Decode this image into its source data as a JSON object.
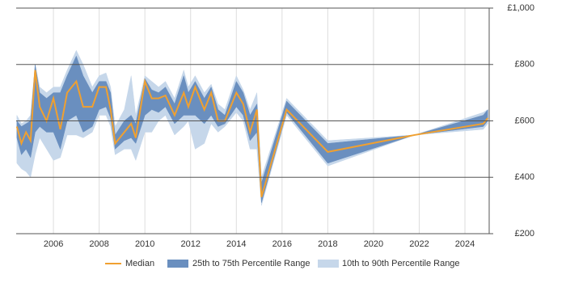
{
  "chart_data": {
    "type": "band-line",
    "x": [
      2004.4,
      2004.6,
      2004.8,
      2005.0,
      2005.2,
      2005.4,
      2005.7,
      2006.0,
      2006.3,
      2006.6,
      2007.0,
      2007.3,
      2007.7,
      2008.0,
      2008.3,
      2008.5,
      2008.7,
      2009.1,
      2009.4,
      2009.6,
      2010.0,
      2010.3,
      2010.6,
      2010.9,
      2011.3,
      2011.7,
      2011.9,
      2012.2,
      2012.6,
      2012.9,
      2013.2,
      2013.5,
      2014.0,
      2014.3,
      2014.6,
      2014.9,
      2015.1,
      2016.2,
      2018.0,
      2021.8,
      2024.8,
      2025.0
    ],
    "series": [
      {
        "name": "Median",
        "color": "#f0a030",
        "values": [
          580,
          520,
          560,
          530,
          780,
          650,
          600,
          680,
          570,
          700,
          740,
          650,
          650,
          720,
          720,
          640,
          520,
          560,
          590,
          540,
          740,
          680,
          680,
          690,
          620,
          700,
          650,
          720,
          640,
          700,
          600,
          600,
          700,
          660,
          560,
          640,
          330,
          640,
          490,
          550,
          590,
          610
        ]
      },
      {
        "name": "25th to 75th Percentile Range",
        "color": "#6a8fbf",
        "low": [
          540,
          480,
          500,
          470,
          560,
          580,
          560,
          560,
          500,
          600,
          620,
          560,
          580,
          640,
          650,
          610,
          500,
          530,
          540,
          520,
          620,
          640,
          630,
          650,
          590,
          620,
          620,
          620,
          590,
          620,
          580,
          590,
          650,
          620,
          530,
          560,
          310,
          630,
          450,
          550,
          580,
          600
        ],
        "high": [
          600,
          580,
          590,
          600,
          800,
          700,
          680,
          700,
          700,
          760,
          830,
          760,
          700,
          740,
          740,
          700,
          550,
          600,
          620,
          590,
          750,
          710,
          700,
          720,
          660,
          760,
          700,
          740,
          680,
          720,
          640,
          620,
          740,
          700,
          620,
          660,
          380,
          670,
          520,
          550,
          620,
          640
        ]
      },
      {
        "name": "10th to 90th Percentile Range",
        "color": "#c6d7ea",
        "low": [
          450,
          430,
          420,
          400,
          480,
          540,
          500,
          460,
          470,
          550,
          550,
          540,
          560,
          620,
          620,
          580,
          480,
          500,
          500,
          460,
          560,
          560,
          600,
          620,
          550,
          580,
          600,
          500,
          520,
          590,
          560,
          580,
          630,
          600,
          500,
          500,
          300,
          620,
          440,
          550,
          570,
          590
        ],
        "high": [
          620,
          590,
          600,
          620,
          800,
          720,
          700,
          720,
          720,
          780,
          850,
          800,
          720,
          760,
          770,
          720,
          580,
          640,
          760,
          620,
          760,
          740,
          720,
          740,
          680,
          780,
          720,
          760,
          700,
          730,
          660,
          640,
          760,
          710,
          640,
          700,
          400,
          680,
          530,
          550,
          630,
          640
        ]
      }
    ],
    "xlim": [
      2004.37,
      2025.06
    ],
    "xticks": [
      2006,
      2008,
      2010,
      2012,
      2014,
      2016,
      2018,
      2020,
      2022,
      2024
    ],
    "ylim": [
      200,
      1000
    ],
    "yticks": [
      {
        "value": 200,
        "label": "£200"
      },
      {
        "value": 400,
        "label": "£400"
      },
      {
        "value": 600,
        "label": "£600"
      },
      {
        "value": 800,
        "label": "£800"
      },
      {
        "value": 1000,
        "label": "£1,000"
      }
    ],
    "grid": true,
    "legend": "bottom"
  }
}
